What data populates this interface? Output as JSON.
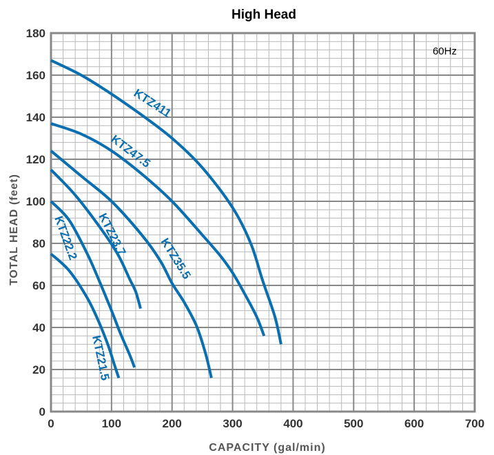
{
  "chart_data": {
    "type": "line",
    "title": "High Head",
    "xlabel": "CAPACITY (gal/min)",
    "ylabel": "TOTAL HEAD (feet)",
    "annotation": "60Hz",
    "xlim": [
      0,
      700
    ],
    "ylim": [
      0,
      180
    ],
    "x_ticks": [
      "0",
      "100",
      "200",
      "300",
      "400",
      "500",
      "600",
      "700"
    ],
    "y_ticks": [
      "0",
      "20",
      "40",
      "60",
      "80",
      "100",
      "120",
      "140",
      "160",
      "180"
    ],
    "grid": true,
    "line_color": "#0a6fb0",
    "series": [
      {
        "name": "KTZ411",
        "x": [
          0,
          50,
          100,
          150,
          200,
          250,
          300,
          330,
          350,
          370,
          380
        ],
        "y": [
          167,
          160,
          151,
          141,
          130,
          116,
          97,
          80,
          62,
          45,
          32
        ]
      },
      {
        "name": "KTZ47.5",
        "x": [
          0,
          50,
          100,
          150,
          200,
          250,
          280,
          300,
          320,
          340,
          352
        ],
        "y": [
          137,
          132,
          124,
          113,
          100,
          84,
          74,
          66,
          56,
          45,
          36
        ]
      },
      {
        "name": "KTZ35.5",
        "x": [
          0,
          50,
          100,
          150,
          180,
          200,
          220,
          240,
          255,
          265
        ],
        "y": [
          124,
          112,
          100,
          84,
          72,
          61,
          52,
          41,
          28,
          16
        ]
      },
      {
        "name": "KTZ23.7",
        "x": [
          0,
          40,
          80,
          110,
          130,
          140,
          148
        ],
        "y": [
          115,
          103,
          88,
          75,
          63,
          57,
          49
        ]
      },
      {
        "name": "KTZ22.2",
        "x": [
          0,
          30,
          60,
          80,
          100,
          115,
          130,
          138
        ],
        "y": [
          100,
          91,
          75,
          62,
          48,
          37,
          27,
          21
        ]
      },
      {
        "name": "KTZ21.5",
        "x": [
          0,
          30,
          60,
          80,
          95,
          105,
          112
        ],
        "y": [
          75,
          67,
          54,
          42,
          31,
          22,
          16
        ]
      }
    ]
  }
}
